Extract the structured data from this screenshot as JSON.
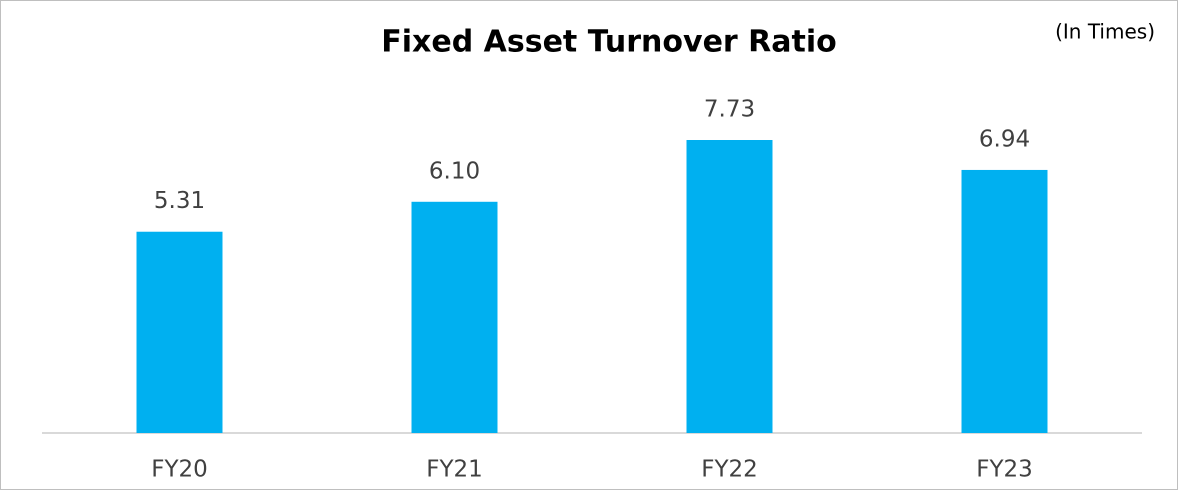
{
  "chart_data": {
    "type": "bar",
    "title": "Fixed Asset Turnover Ratio",
    "subtitle": "(In Times)",
    "categories": [
      "FY20",
      "FY21",
      "FY22",
      "FY23"
    ],
    "values": [
      5.31,
      6.1,
      7.73,
      6.94
    ],
    "value_labels": [
      "5.31",
      "6.10",
      "7.73",
      "6.94"
    ],
    "color": "#00b0f0"
  }
}
